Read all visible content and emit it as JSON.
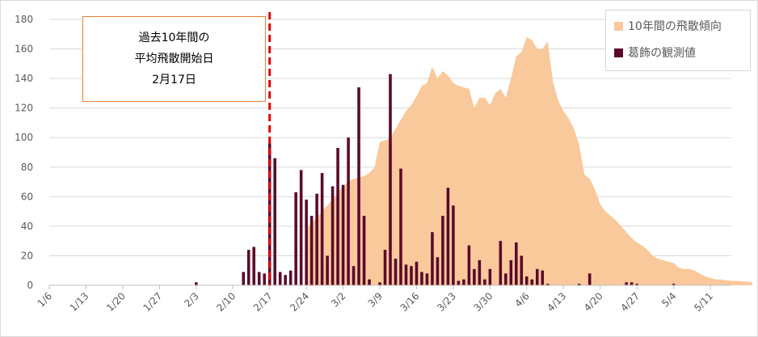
{
  "chart_data": {
    "type": "bar+area",
    "x_start": "1/6",
    "ylim": [
      0,
      180
    ],
    "y_ticks": [
      0,
      20,
      40,
      60,
      80,
      100,
      120,
      140,
      160,
      180
    ],
    "x_tick_labels": [
      "1/6",
      "1/13",
      "1/20",
      "1/27",
      "2/3",
      "2/10",
      "2/17",
      "2/24",
      "3/2",
      "3/9",
      "3/16",
      "3/23",
      "3/30",
      "4/6",
      "4/13",
      "4/20",
      "4/27",
      "5/4",
      "5/11"
    ],
    "grid": true,
    "legend_position": "top-right",
    "series": [
      {
        "name": "10年間の飛散傾向",
        "kind": "area",
        "color": "#f9c99b",
        "start": "2/24",
        "values": [
          38,
          42,
          46,
          50,
          54,
          58,
          63,
          67,
          70,
          72,
          73,
          74,
          76,
          80,
          97,
          98,
          100,
          106,
          112,
          118,
          122,
          128,
          135,
          137,
          148,
          140,
          145,
          142,
          137,
          135,
          134,
          133,
          120,
          127,
          127,
          122,
          130,
          133,
          127,
          140,
          155,
          158,
          168,
          166,
          160,
          160,
          165,
          138,
          125,
          118,
          113,
          106,
          95,
          75,
          72,
          65,
          55,
          50,
          47,
          44,
          40,
          36,
          32,
          29,
          27,
          24,
          20,
          18,
          17,
          16,
          15,
          12,
          11,
          11,
          10,
          8,
          6,
          5,
          4,
          4,
          3.5,
          3,
          3,
          2.5,
          2.5,
          2
        ]
      },
      {
        "name": "葛飾の観測値",
        "kind": "bar",
        "color": "#5a0a2a",
        "start": "2/3",
        "values": [
          2,
          0,
          0,
          0,
          0,
          0,
          0,
          0,
          0,
          9,
          24,
          26,
          9,
          8,
          96,
          86,
          9,
          7,
          10,
          63,
          78,
          58,
          47,
          62,
          76,
          20,
          67,
          93,
          68,
          100,
          13,
          134,
          47,
          4,
          0,
          2,
          24,
          143,
          18,
          79,
          14,
          13,
          16,
          9,
          8,
          36,
          19,
          47,
          66,
          54,
          3,
          4,
          27,
          11,
          17,
          4,
          11,
          0,
          30,
          8,
          17,
          29,
          20,
          6,
          4,
          11,
          10,
          1,
          0,
          0,
          0,
          0,
          0,
          1,
          0,
          8,
          0,
          0,
          0,
          0,
          0,
          0,
          2,
          2,
          1,
          0,
          0,
          0,
          0,
          0,
          0,
          1,
          0
        ]
      }
    ],
    "annotation": {
      "lines": [
        "過去10年間の",
        "平均飛散開始日",
        "2月17日"
      ],
      "marker_date": "2/17",
      "line_color": "#e00000",
      "border_color": "#ed7d31"
    }
  }
}
